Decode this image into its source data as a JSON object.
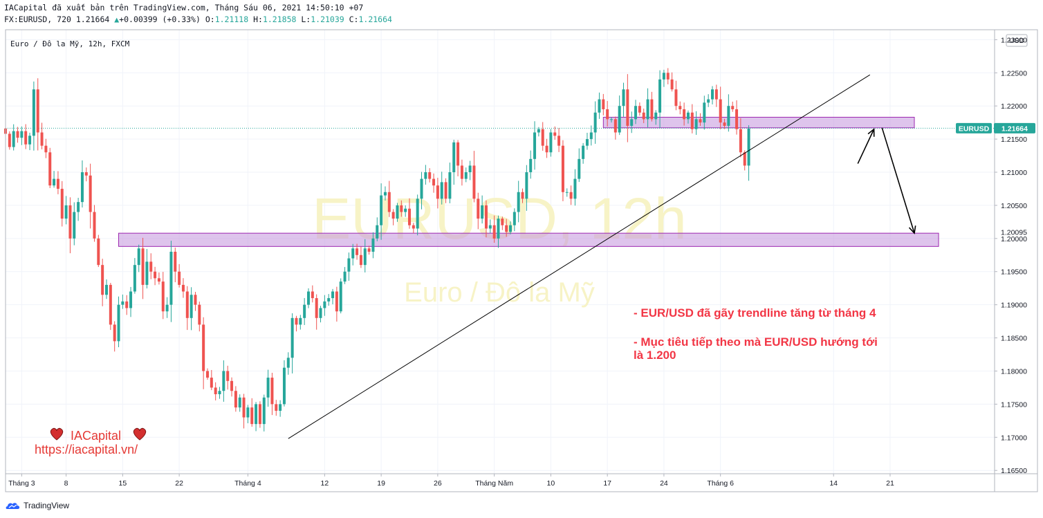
{
  "header": {
    "publish_line": "IACapital đã xuất bản trên TradingView.com, Tháng Sáu 06, 2021 14:50:10 +07",
    "symbol_prefix": "FX:EURUSD, 720 1.21664",
    "change": "+0.00399 (+0.33%)",
    "open_label": "O:",
    "open": "1.21118",
    "high_label": "H:",
    "high": "1.21858",
    "low_label": "L:",
    "low": "1.21039",
    "close_label": "C:",
    "close": "1.21664"
  },
  "footer": {
    "brand": "TradingView"
  },
  "chart_data": {
    "type": "candlestick",
    "pane_title": "Euro / Đô la Mỹ, 12h, FXCM",
    "currency_label": "USD",
    "watermark_symbol": "EURUSD, 12h",
    "watermark_name": "Euro / Đô la Mỹ",
    "ylim": [
      1.1645,
      1.2315
    ],
    "y_ticks": [
      "1.23000",
      "1.22500",
      "1.22000",
      "1.21500",
      "1.21000",
      "1.20500",
      "1.20000",
      "1.19500",
      "1.19000",
      "1.18500",
      "1.18000",
      "1.17500",
      "1.17000",
      "1.16500"
    ],
    "x_ticks": [
      {
        "label": "Tháng 3",
        "i": 4
      },
      {
        "label": "8",
        "i": 15
      },
      {
        "label": "15",
        "i": 29
      },
      {
        "label": "22",
        "i": 43
      },
      {
        "label": "Tháng 4",
        "i": 60
      },
      {
        "label": "12",
        "i": 79
      },
      {
        "label": "19",
        "i": 93
      },
      {
        "label": "26",
        "i": 107
      },
      {
        "label": "Tháng Năm",
        "i": 121
      },
      {
        "label": "10",
        "i": 135
      },
      {
        "label": "17",
        "i": 149
      },
      {
        "label": "24",
        "i": 163
      },
      {
        "label": "Tháng 6",
        "i": 177
      },
      {
        "label": "14",
        "i": 205
      },
      {
        "label": "21",
        "i": 219
      }
    ],
    "last_price": {
      "label": "EURUSD",
      "value": "1.21664",
      "price": 1.21664
    },
    "target_label": {
      "value": "1.20095",
      "price": 1.20095
    },
    "colors": {
      "up": "#26a69a",
      "down": "#ef5350",
      "zone_fill": "#c89de0",
      "zone_stroke": "#9c27b0",
      "annotation": "#f23645"
    },
    "zones": [
      {
        "i_from": 28,
        "i_to": 231,
        "y_low": 1.1988,
        "y_high": 1.2008
      },
      {
        "i_from": 148,
        "i_to": 225,
        "y_low": 1.2167,
        "y_high": 1.2183
      }
    ],
    "trendline": {
      "i1": 70,
      "p1": 1.1698,
      "i2": 214,
      "p2": 1.2247
    },
    "arrows": [
      {
        "points": [
          [
            211,
            1.2113
          ],
          [
            215,
            1.2165
          ]
        ]
      },
      {
        "points": [
          [
            217,
            1.2167
          ],
          [
            225,
            1.2008
          ]
        ]
      }
    ],
    "annotations": [
      "- EUR/USD đã gãy trendline tăng từ tháng 4",
      "- Mục tiêu tiếp theo mà EUR/USD hướng tới",
      "là 1.200"
    ],
    "brand_name": "IACapital",
    "brand_url": "https://iacapital.vn/",
    "closes": [
      1.2158,
      1.2138,
      1.2162,
      1.2152,
      1.2162,
      1.2142,
      1.2155,
      1.2225,
      1.216,
      1.214,
      1.213,
      1.208,
      1.209,
      1.2075,
      1.203,
      1.205,
      1.2,
      1.204,
      1.2055,
      1.21,
      1.2095,
      1.204,
      1.2,
      1.196,
      1.1915,
      1.193,
      1.187,
      1.1845,
      1.19,
      1.1905,
      1.1895,
      1.192,
      1.196,
      1.1985,
      1.193,
      1.1965,
      1.195,
      1.194,
      1.1935,
      1.189,
      1.19,
      1.198,
      1.195,
      1.193,
      1.192,
      1.188,
      1.1915,
      1.19,
      1.187,
      1.18,
      1.179,
      1.1775,
      1.1765,
      1.177,
      1.18,
      1.1785,
      1.177,
      1.1745,
      1.176,
      1.173,
      1.1745,
      1.172,
      1.175,
      1.172,
      1.176,
      1.179,
      1.175,
      1.174,
      1.175,
      1.1805,
      1.182,
      1.188,
      1.187,
      1.188,
      1.19,
      1.192,
      1.191,
      1.188,
      1.1895,
      1.1905,
      1.191,
      1.192,
      1.189,
      1.1935,
      1.195,
      1.197,
      1.1985,
      1.1975,
      1.196,
      1.1985,
      1.198,
      1.2,
      1.202,
      1.2065,
      1.207,
      1.204,
      1.203,
      1.205,
      1.204,
      1.2045,
      1.202,
      1.2015,
      1.206,
      1.209,
      1.21,
      1.209,
      1.208,
      1.206,
      1.2085,
      1.206,
      1.21,
      1.2145,
      1.211,
      1.209,
      1.21,
      1.211,
      1.206,
      1.203,
      1.205,
      1.2015,
      1.202,
      1.2,
      1.203,
      1.202,
      1.201,
      1.202,
      1.204,
      1.207,
      1.206,
      1.21,
      1.212,
      1.216,
      1.2165,
      1.214,
      1.213,
      1.216,
      1.2155,
      1.214,
      1.207,
      1.207,
      1.206,
      1.209,
      1.212,
      1.214,
      1.215,
      1.216,
      1.219,
      1.221,
      1.2195,
      1.218,
      1.218,
      1.216,
      1.22,
      1.2225,
      1.217,
      1.218,
      1.22,
      1.219,
      1.218,
      1.221,
      1.218,
      1.219,
      1.224,
      1.225,
      1.224,
      1.2225,
      1.22,
      1.2195,
      1.218,
      1.219,
      1.2165,
      1.218,
      1.2175,
      1.2205,
      1.221,
      1.2225,
      1.221,
      1.2175,
      1.217,
      1.22,
      1.2195,
      1.2165,
      1.213,
      1.211,
      1.2166
    ]
  }
}
